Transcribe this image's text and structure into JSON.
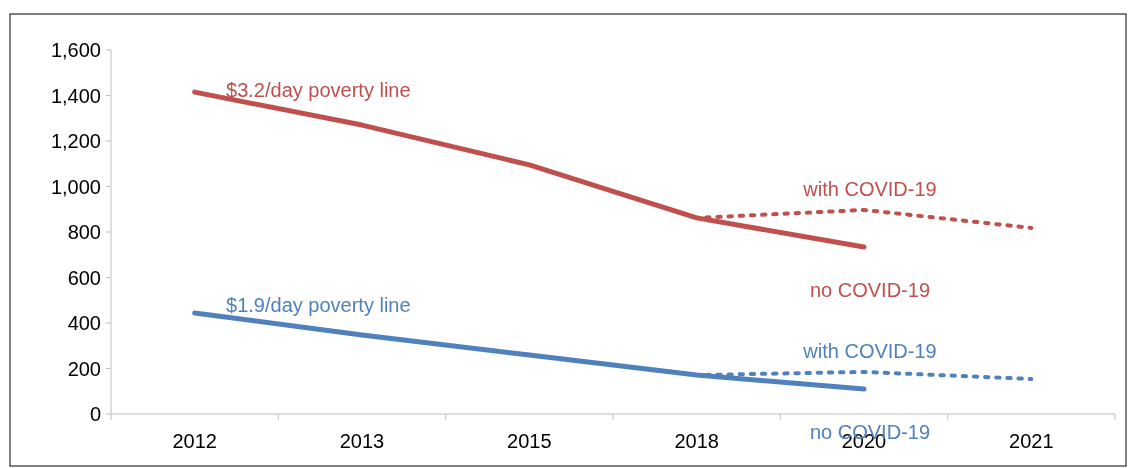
{
  "chart_data": {
    "type": "line",
    "categories": [
      "2012",
      "2013",
      "2015",
      "2018",
      "2020",
      "2021"
    ],
    "series": [
      {
        "name": "no COVID-19",
        "color": "#c0504d",
        "values": [
          1415,
          1270,
          1095,
          862,
          734,
          null
        ]
      },
      {
        "name": "with COVID-19",
        "color": "#c0504d",
        "line_style": "dotted",
        "values": [
          null,
          null,
          null,
          862,
          897,
          818
        ]
      },
      {
        "name": "no COVID-19",
        "color": "#4f81bd",
        "values": [
          444,
          347,
          259,
          171,
          110,
          null
        ]
      },
      {
        "name": "with COVID-19",
        "color": "#4f81bd",
        "line_style": "dotted",
        "values": [
          null,
          null,
          null,
          171,
          185,
          154
        ]
      }
    ],
    "annotations": [
      "$3.2/day poverty line",
      "$1.9/day poverty line"
    ],
    "ylim": [
      0,
      1600
    ],
    "yticks": [
      {
        "value": 0,
        "label": "0"
      },
      {
        "value": 200,
        "label": "200"
      },
      {
        "value": 400,
        "label": "400"
      },
      {
        "value": 600,
        "label": "600"
      },
      {
        "value": 800,
        "label": "800"
      },
      {
        "value": 1000,
        "label": "1,000"
      },
      {
        "value": 1200,
        "label": "1,200"
      },
      {
        "value": 1400,
        "label": "1,400"
      },
      {
        "value": 1600,
        "label": "1,600"
      }
    ],
    "grid": false,
    "legend": false,
    "marker": "none",
    "line_style": "solid"
  }
}
